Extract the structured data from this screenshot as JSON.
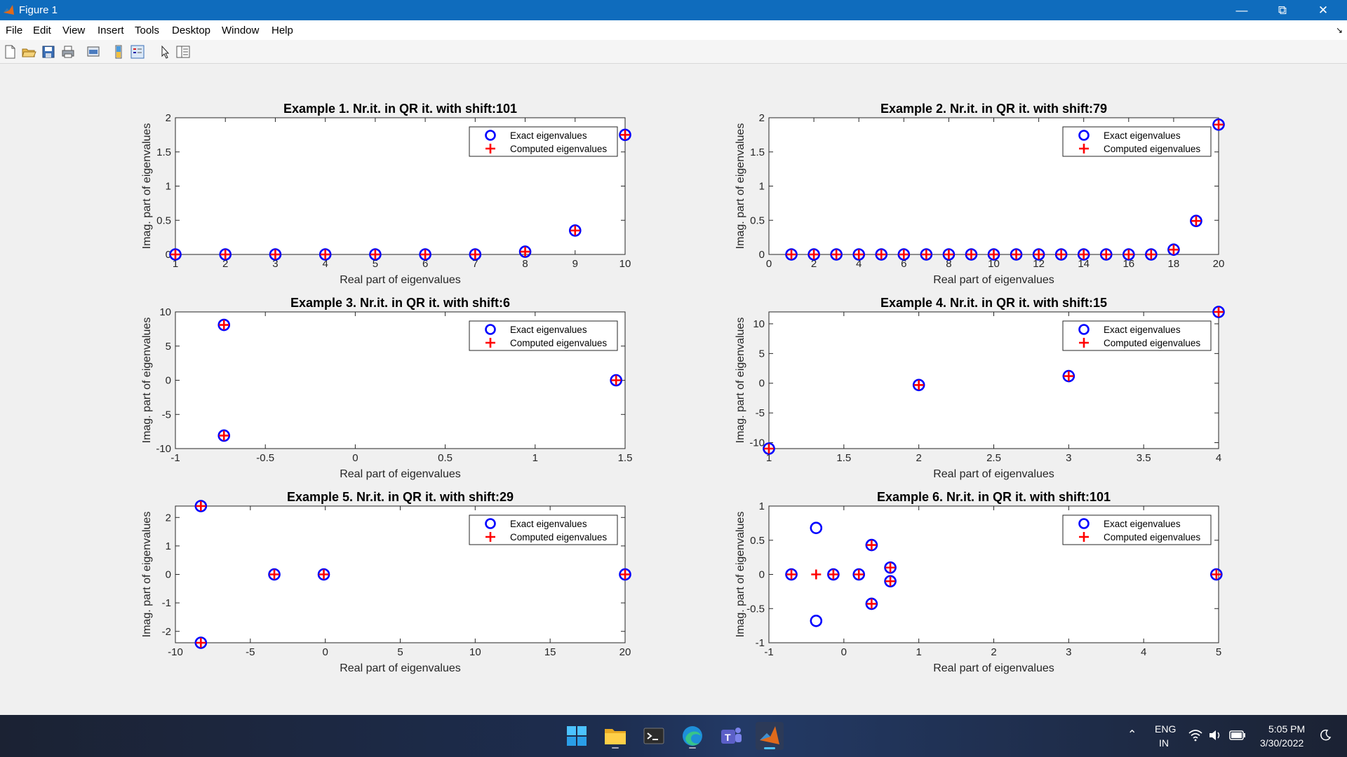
{
  "window": {
    "title": "Figure 1"
  },
  "menu": [
    "File",
    "Edit",
    "View",
    "Insert",
    "Tools",
    "Desktop",
    "Window",
    "Help"
  ],
  "legend": {
    "exact": "Exact eigenvalues",
    "computed": "Computed eigenvalues"
  },
  "colors": {
    "exact": "#0000ff",
    "computed": "#ff0000",
    "titlebar": "#0f6cbd"
  },
  "taskbar": {
    "lang": "ENG",
    "region": "IN",
    "time": "5:05 PM",
    "date": "3/30/2022"
  },
  "chart_data": [
    {
      "type": "scatter",
      "title": "Example 1. Nr.it. in QR it. with shift:101",
      "xlabel": "Real part of eigenvalues",
      "ylabel": "Imag. part of eigenvalues",
      "xlim": [
        1,
        10
      ],
      "ylim": [
        0,
        2
      ],
      "xticks": [
        "1",
        "2",
        "3",
        "4",
        "5",
        "6",
        "7",
        "8",
        "9",
        "10"
      ],
      "yticks": [
        "0",
        "0.5",
        "1",
        "1.5",
        "2"
      ],
      "legend_position": "top-right",
      "exact": [
        [
          1,
          0
        ],
        [
          2,
          0
        ],
        [
          3,
          0
        ],
        [
          4,
          0
        ],
        [
          5,
          0
        ],
        [
          6,
          0
        ],
        [
          7,
          0
        ],
        [
          8,
          0.04
        ],
        [
          9,
          0.35
        ],
        [
          10,
          1.75
        ]
      ],
      "computed": [
        [
          1,
          0
        ],
        [
          2,
          0
        ],
        [
          3,
          0
        ],
        [
          4,
          0
        ],
        [
          5,
          0
        ],
        [
          6,
          0
        ],
        [
          7,
          0
        ],
        [
          8,
          0.04
        ],
        [
          9,
          0.35
        ],
        [
          10,
          1.75
        ]
      ]
    },
    {
      "type": "scatter",
      "title": "Example 2. Nr.it. in QR it. with shift:79",
      "xlabel": "Real part of eigenvalues",
      "ylabel": "Imag. part of eigenvalues",
      "xlim": [
        0,
        20
      ],
      "ylim": [
        0,
        2
      ],
      "xticks": [
        "0",
        "2",
        "4",
        "6",
        "8",
        "10",
        "12",
        "14",
        "16",
        "18",
        "20"
      ],
      "yticks": [
        "0",
        "0.5",
        "1",
        "1.5",
        "2"
      ],
      "legend_position": "top-right",
      "exact": [
        [
          1,
          0
        ],
        [
          2,
          0
        ],
        [
          3,
          0
        ],
        [
          4,
          0
        ],
        [
          5,
          0
        ],
        [
          6,
          0
        ],
        [
          7,
          0
        ],
        [
          8,
          0
        ],
        [
          9,
          0
        ],
        [
          10,
          0
        ],
        [
          11,
          0
        ],
        [
          12,
          0
        ],
        [
          13,
          0
        ],
        [
          14,
          0
        ],
        [
          15,
          0
        ],
        [
          16,
          0
        ],
        [
          17,
          0
        ],
        [
          18,
          0.07
        ],
        [
          19,
          0.49
        ],
        [
          20,
          1.9
        ]
      ],
      "computed": [
        [
          1,
          0
        ],
        [
          2,
          0
        ],
        [
          3,
          0
        ],
        [
          4,
          0
        ],
        [
          5,
          0
        ],
        [
          6,
          0
        ],
        [
          7,
          0
        ],
        [
          8,
          0
        ],
        [
          9,
          0
        ],
        [
          10,
          0
        ],
        [
          11,
          0
        ],
        [
          12,
          0
        ],
        [
          13,
          0
        ],
        [
          14,
          0
        ],
        [
          15,
          0
        ],
        [
          16,
          0
        ],
        [
          17,
          0
        ],
        [
          18,
          0.07
        ],
        [
          19,
          0.49
        ],
        [
          20,
          1.9
        ]
      ]
    },
    {
      "type": "scatter",
      "title": "Example 3. Nr.it. in QR it. with shift:6",
      "xlabel": "Real part of eigenvalues",
      "ylabel": "Imag. part of eigenvalues",
      "xlim": [
        -1,
        1.5
      ],
      "ylim": [
        -10,
        10
      ],
      "xticks": [
        "-1",
        "-0.5",
        "0",
        "0.5",
        "1",
        "1.5"
      ],
      "yticks": [
        "-10",
        "-5",
        "0",
        "5",
        "10"
      ],
      "legend_position": "top-right",
      "exact": [
        [
          -0.73,
          8.1
        ],
        [
          -0.73,
          -8.1
        ],
        [
          1.45,
          0
        ]
      ],
      "computed": [
        [
          -0.73,
          8.1
        ],
        [
          -0.73,
          -8.1
        ],
        [
          1.45,
          0
        ]
      ]
    },
    {
      "type": "scatter",
      "title": "Example 4. Nr.it. in QR it. with shift:15",
      "xlabel": "Real part of eigenvalues",
      "ylabel": "Imag. part of eigenvalues",
      "xlim": [
        1,
        4
      ],
      "ylim": [
        -11,
        12
      ],
      "xticks": [
        "1",
        "1.5",
        "2",
        "2.5",
        "3",
        "3.5",
        "4"
      ],
      "yticks": [
        "-10",
        "-5",
        "0",
        "5",
        "10"
      ],
      "legend_position": "top-right",
      "exact": [
        [
          1,
          -11
        ],
        [
          2,
          -0.3
        ],
        [
          3,
          1.2
        ],
        [
          4,
          12
        ]
      ],
      "computed": [
        [
          1,
          -11
        ],
        [
          2,
          -0.3
        ],
        [
          3,
          1.2
        ],
        [
          4,
          12
        ]
      ]
    },
    {
      "type": "scatter",
      "title": "Example 5. Nr.it. in QR it. with shift:29",
      "xlabel": "Real part of eigenvalues",
      "ylabel": "Imag. part of eigenvalues",
      "xlim": [
        -10,
        20
      ],
      "ylim": [
        -2.4,
        2.4
      ],
      "xticks": [
        "-10",
        "-5",
        "0",
        "5",
        "10",
        "15",
        "20"
      ],
      "yticks": [
        "-2",
        "-1",
        "0",
        "1",
        "2"
      ],
      "legend_position": "top-right",
      "exact": [
        [
          -8.3,
          2.4
        ],
        [
          -8.3,
          -2.4
        ],
        [
          -3.4,
          0
        ],
        [
          -0.1,
          0
        ],
        [
          20,
          0
        ]
      ],
      "computed": [
        [
          -8.3,
          2.4
        ],
        [
          -8.3,
          -2.4
        ],
        [
          -3.4,
          0
        ],
        [
          -0.1,
          0
        ],
        [
          20,
          0
        ]
      ]
    },
    {
      "type": "scatter",
      "title": "Example 6. Nr.it. in QR it. with shift:101",
      "xlabel": "Real part of eigenvalues",
      "ylabel": "Imag. part of eigenvalues",
      "xlim": [
        -1,
        5
      ],
      "ylim": [
        -1,
        1
      ],
      "xticks": [
        "-1",
        "0",
        "1",
        "2",
        "3",
        "4",
        "5"
      ],
      "yticks": [
        "-1",
        "-0.5",
        "0",
        "0.5",
        "1"
      ],
      "legend_position": "top-right",
      "exact": [
        [
          -0.7,
          0
        ],
        [
          -0.37,
          0.68
        ],
        [
          -0.37,
          -0.68
        ],
        [
          -0.14,
          0
        ],
        [
          0.2,
          0
        ],
        [
          0.37,
          0.43
        ],
        [
          0.37,
          -0.43
        ],
        [
          0.62,
          0.1
        ],
        [
          0.62,
          -0.1
        ],
        [
          4.97,
          0
        ]
      ],
      "computed": [
        [
          -0.7,
          0
        ],
        [
          -0.37,
          0
        ],
        [
          -0.14,
          0
        ],
        [
          0.2,
          0
        ],
        [
          0.37,
          0.43
        ],
        [
          0.37,
          -0.43
        ],
        [
          0.62,
          0.1
        ],
        [
          0.62,
          -0.1
        ],
        [
          4.97,
          0
        ]
      ]
    }
  ]
}
